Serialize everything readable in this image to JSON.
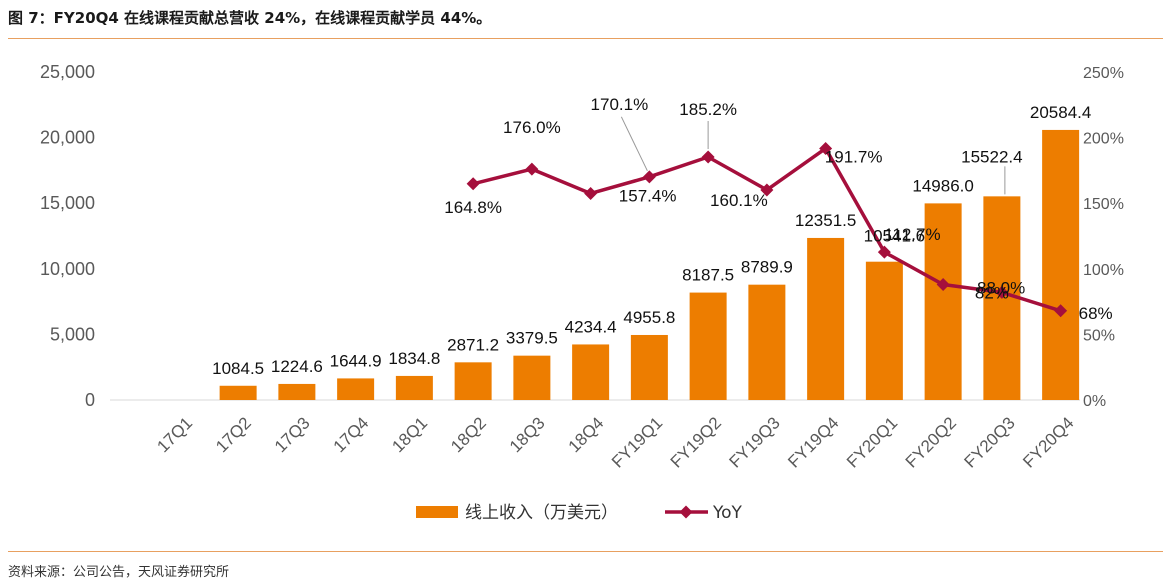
{
  "title": "图 7：FY20Q4 在线课程贡献总营收 24%，在线课程贡献学员 44%。",
  "source": "资料来源：公司公告，天风证券研究所",
  "colors": {
    "bar": "#ED7D00",
    "line": "#A50F3C",
    "rule": "#E8A060"
  },
  "chart_data": {
    "type": "bar+line",
    "categories": [
      "17Q1",
      "17Q2",
      "17Q3",
      "17Q4",
      "18Q1",
      "18Q2",
      "18Q3",
      "18Q4",
      "FY19Q1",
      "FY19Q2",
      "FY19Q3",
      "FY19Q4",
      "FY20Q1",
      "FY20Q2",
      "FY20Q3",
      "FY20Q4"
    ],
    "series": [
      {
        "name": "线上收入（万美元）",
        "type": "bar",
        "axis": "left",
        "values": [
          null,
          1084.5,
          1224.6,
          1644.9,
          1834.8,
          2871.2,
          3379.5,
          4234.4,
          4955.8,
          8187.5,
          8789.9,
          12351.5,
          10541.6,
          14986.0,
          15522.4,
          20584.4
        ],
        "labels": [
          "",
          "1084.5",
          "1224.6",
          "1644.9",
          "1834.8",
          "2871.2",
          "3379.5",
          "4234.4",
          "4955.8",
          "8187.5",
          "8789.9",
          "12351.5",
          "10541.6",
          "14986.0",
          "15522.4",
          "20584.4"
        ]
      },
      {
        "name": "YoY",
        "type": "line",
        "axis": "right",
        "values": [
          null,
          null,
          null,
          null,
          null,
          164.8,
          176.0,
          157.4,
          170.1,
          185.2,
          160.1,
          191.7,
          112.7,
          88.0,
          82,
          68
        ],
        "labels": [
          "",
          "",
          "",
          "",
          "",
          "164.8%",
          "176.0%",
          "157.4%",
          "170.1%",
          "185.2%",
          "160.1%",
          "191.7%",
          "112.7%",
          "88.0%",
          "82%",
          "68%"
        ]
      }
    ],
    "y_left": {
      "min": 0,
      "max": 25000,
      "ticks": [
        "0",
        "5,000",
        "10,000",
        "15,000",
        "20,000",
        "25,000"
      ]
    },
    "y_right": {
      "min": 0,
      "max": 250,
      "ticks": [
        "0%",
        "50%",
        "100%",
        "150%",
        "200%",
        "250%"
      ]
    },
    "legend": {
      "position": "bottom-center",
      "items": [
        "线上收入（万美元）",
        "YoY"
      ]
    },
    "grid": false
  }
}
